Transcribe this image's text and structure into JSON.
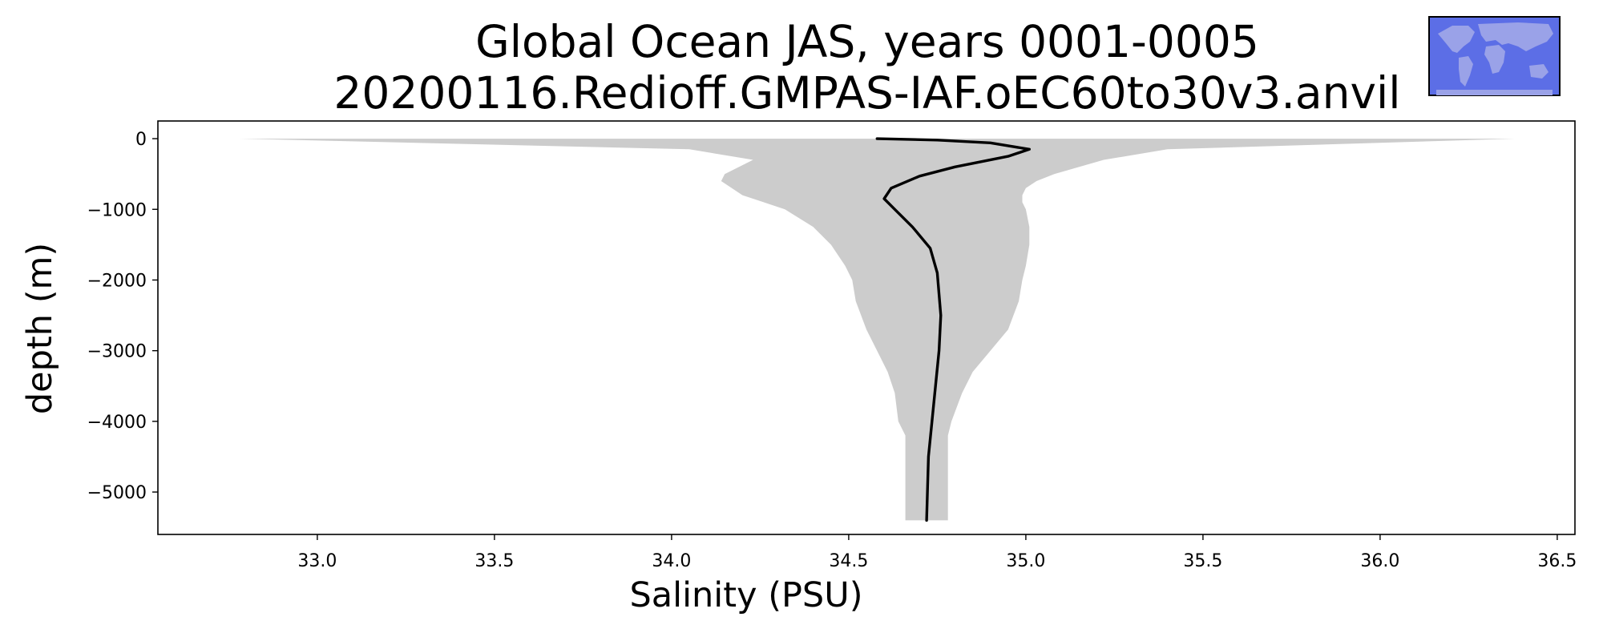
{
  "chart_data": {
    "type": "line",
    "title": "Global Ocean JAS, years 0001-0005",
    "subtitle": "20200116.Redioff.GMPAS-IAF.oEC60to30v3.anvil",
    "xlabel": "Salinity (PSU)",
    "ylabel": "depth (m)",
    "xlim": [
      32.55,
      36.55
    ],
    "ylim": [
      -5600,
      250
    ],
    "xticks": [
      "33.0",
      "33.5",
      "34.0",
      "34.5",
      "35.0",
      "35.5",
      "36.0",
      "36.5"
    ],
    "yticks": [
      "0",
      "−1000",
      "−2000",
      "−3000",
      "−4000",
      "−5000"
    ],
    "xtick_values": [
      33.0,
      33.5,
      34.0,
      34.5,
      35.0,
      35.5,
      36.0,
      36.5
    ],
    "ytick_values": [
      0,
      -1000,
      -2000,
      -3000,
      -4000,
      -5000
    ],
    "grid": false,
    "series": [
      {
        "color": "#000000",
        "x": [
          34.58,
          34.75,
          34.9,
          35.01,
          34.95,
          34.8,
          34.7,
          34.62,
          34.6,
          34.63,
          34.68,
          34.73,
          34.75,
          34.76,
          34.755,
          34.745,
          34.735,
          34.725,
          34.72
        ],
        "y": [
          0,
          -20,
          -60,
          -150,
          -250,
          -400,
          -530,
          -700,
          -850,
          -1000,
          -1250,
          -1550,
          -1900,
          -2500,
          -3000,
          -3500,
          -4000,
          -4500,
          -5400
        ]
      }
    ],
    "band": {
      "color": "#cccccc",
      "depth": [
        0,
        -150,
        -300,
        -500,
        -600,
        -700,
        -800,
        -900,
        -1000,
        -1250,
        -1500,
        -1800,
        -2000,
        -2300,
        -2700,
        -3000,
        -3300,
        -3600,
        -4000,
        -4200,
        -4400,
        -5400
      ],
      "min": [
        32.78,
        34.05,
        34.23,
        34.15,
        34.14,
        34.17,
        34.2,
        34.26,
        34.32,
        34.4,
        34.45,
        34.49,
        34.51,
        34.52,
        34.55,
        34.58,
        34.61,
        34.63,
        34.64,
        34.66,
        34.66,
        34.66
      ],
      "max": [
        36.38,
        35.4,
        35.22,
        35.08,
        35.03,
        35.0,
        34.99,
        34.99,
        35.0,
        35.01,
        35.01,
        35.0,
        34.99,
        34.98,
        34.95,
        34.9,
        34.85,
        34.82,
        34.79,
        34.78,
        34.78,
        34.78
      ]
    }
  },
  "inset_map": {
    "ocean_color": "#5c6ee6",
    "land_color": "#9aa2e8",
    "border_color": "#000000"
  }
}
